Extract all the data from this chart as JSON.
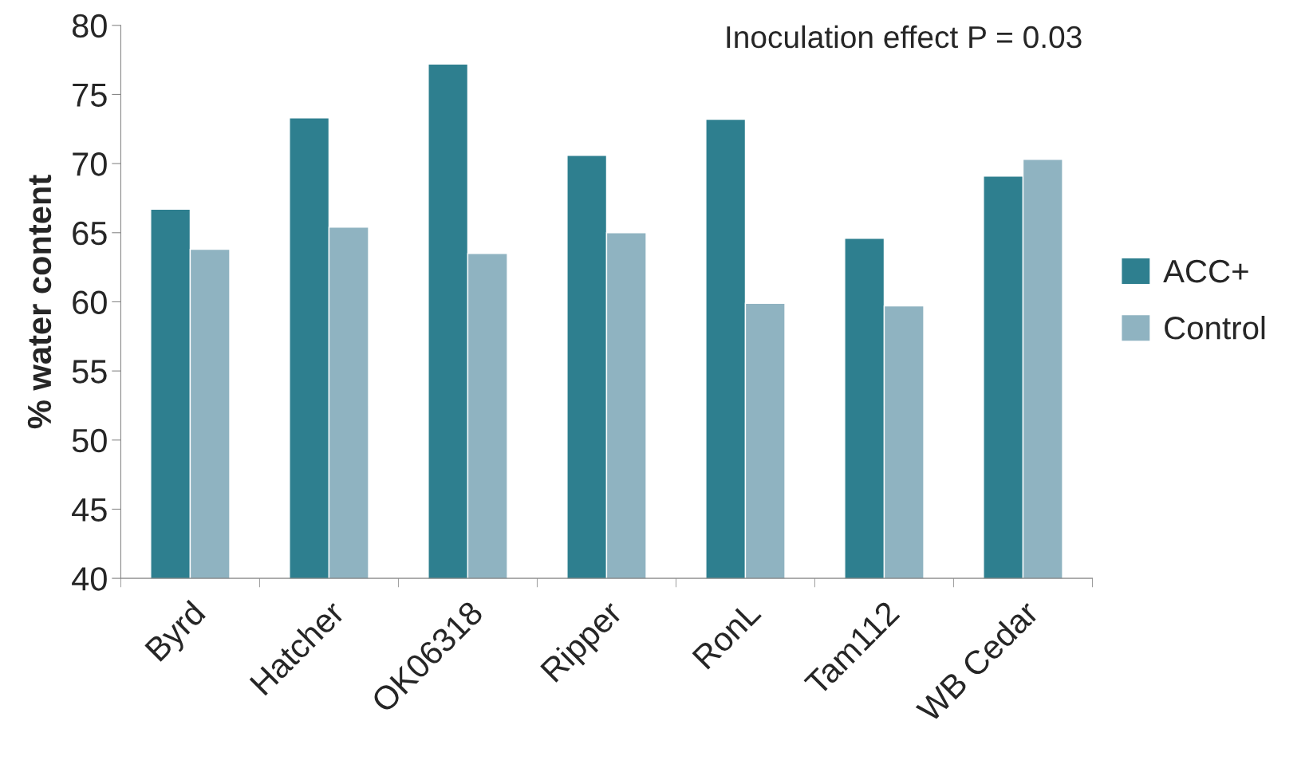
{
  "chart_data": {
    "type": "bar",
    "ylabel": "% water content",
    "categories": [
      "Byrd",
      "Hatcher",
      "OK06318",
      "Ripper",
      "RonL",
      "Tam112",
      "WB Cedar"
    ],
    "series": [
      {
        "name": "ACC+",
        "color": "#2e7f8f",
        "values": [
          66.7,
          73.3,
          77.2,
          70.6,
          73.2,
          64.6,
          69.1
        ]
      },
      {
        "name": "Control",
        "color": "#8fb3c1",
        "values": [
          63.8,
          65.4,
          63.5,
          65.0,
          59.9,
          59.7,
          70.3
        ]
      }
    ],
    "ylim": [
      40,
      80
    ],
    "yticks": [
      40,
      45,
      50,
      55,
      60,
      65,
      70,
      75,
      80
    ],
    "annotations": [
      "Inoculation effect P = 0.03"
    ],
    "legend": "right",
    "grid": false
  }
}
